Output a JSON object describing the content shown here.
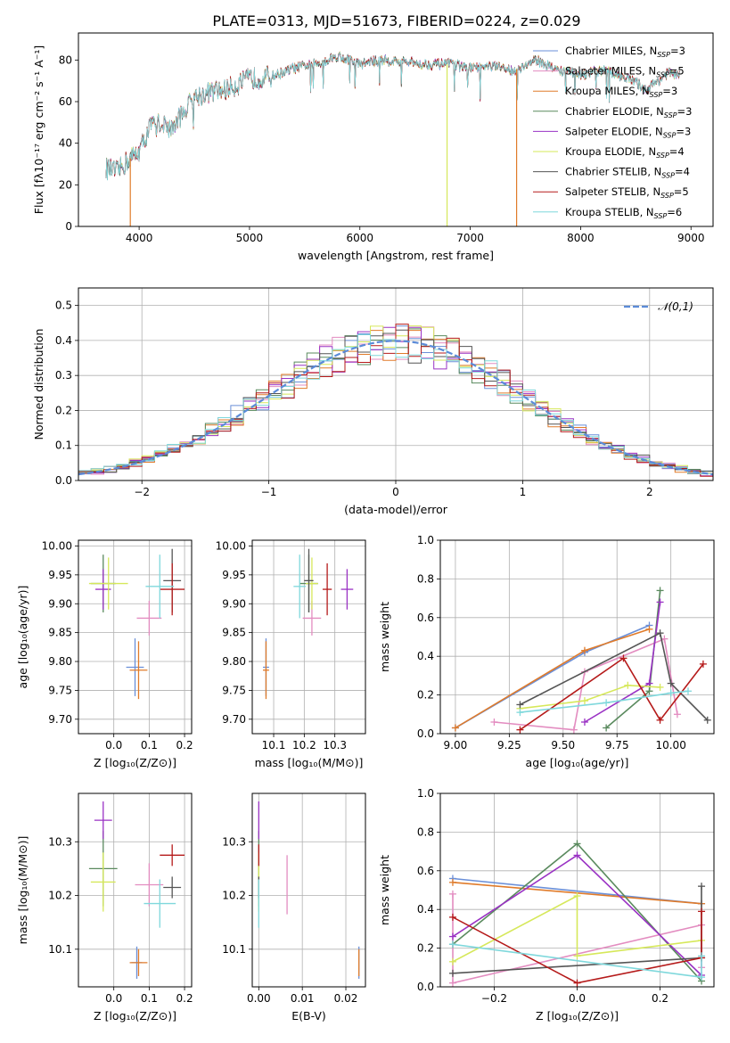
{
  "figure_title": "PLATE=0313, MJD=51673, FIBERID=0224, z=0.029",
  "colors": {
    "Chabrier MILES": "#6a8fd8",
    "Salpeter MILES": "#e38cc0",
    "Kroupa MILES": "#e07b2a",
    "Chabrier ELODIE": "#5a8a5e",
    "Salpeter ELODIE": "#9a32c4",
    "Kroupa ELODIE": "#d6e85a",
    "Chabrier STELIB": "#555555",
    "Salpeter STELIB": "#b51a1a",
    "Kroupa STELIB": "#7fd8dc",
    "normal_curve": "#5b8bd8",
    "grid": "#b0b0b0"
  },
  "chart_data": [
    {
      "id": "spectrum",
      "type": "line",
      "xlabel": "wavelength [Angstrom, rest frame]",
      "ylabel": "Flux [fλ10⁻¹⁷ erg cm⁻² s⁻¹ A⁻¹]",
      "xlim": [
        3450,
        9200
      ],
      "ylim": [
        0,
        93
      ],
      "xticks": [
        4000,
        5000,
        6000,
        7000,
        8000,
        9000
      ],
      "yticks": [
        0,
        20,
        40,
        60,
        80
      ],
      "grid": false,
      "legend_position": "top-right",
      "legend": [
        "Chabrier MILES, N_SSP=3",
        "Salpeter MILES, N_SSP=5",
        "Kroupa MILES, N_SSP=3",
        "Chabrier ELODIE, N_SSP=3",
        "Salpeter ELODIE, N_SSP=3",
        "Kroupa ELODIE, N_SSP=4",
        "Chabrier STELIB, N_SSP=4",
        "Salpeter STELIB, N_SSP=5",
        "Kroupa STELIB, N_SSP=6"
      ],
      "continuum": [
        [
          3700,
          28
        ],
        [
          3800,
          26
        ],
        [
          3900,
          32
        ],
        [
          4000,
          36
        ],
        [
          4100,
          48
        ],
        [
          4200,
          50
        ],
        [
          4300,
          47
        ],
        [
          4400,
          55
        ],
        [
          4500,
          62
        ],
        [
          4600,
          64
        ],
        [
          4800,
          66
        ],
        [
          5000,
          71
        ],
        [
          5200,
          72
        ],
        [
          5400,
          76
        ],
        [
          5600,
          78
        ],
        [
          5800,
          82
        ],
        [
          5900,
          80
        ],
        [
          6000,
          78
        ],
        [
          6200,
          80
        ],
        [
          6400,
          79
        ],
        [
          6600,
          78
        ],
        [
          6800,
          78
        ],
        [
          7000,
          76
        ],
        [
          7200,
          77
        ],
        [
          7400,
          75
        ],
        [
          7600,
          80
        ],
        [
          7800,
          75
        ],
        [
          8000,
          73
        ],
        [
          8200,
          75
        ],
        [
          8400,
          72
        ],
        [
          8600,
          66
        ],
        [
          8800,
          74
        ],
        [
          8900,
          72
        ]
      ],
      "drops": [
        {
          "x": 3920,
          "model": "Kroupa MILES"
        },
        {
          "x": 6790,
          "model": "Kroupa ELODIE"
        },
        {
          "x": 7420,
          "model": "Kroupa MILES"
        }
      ]
    },
    {
      "id": "residual-distribution",
      "type": "line",
      "xlabel": "(data-model)/error",
      "ylabel": "Normed distribution",
      "xlim": [
        -2.5,
        2.5
      ],
      "ylim": [
        0,
        0.55
      ],
      "xticks": [
        -2,
        -1,
        0,
        1,
        2
      ],
      "yticks": [
        0.0,
        0.1,
        0.2,
        0.3,
        0.4,
        0.5
      ],
      "grid": true,
      "legend_position": "top-right",
      "legend": [
        "𝒩(0,1)"
      ],
      "series": "nine step histograms of residuals, one per model, following the normal curve with peak near 0.40–0.52 at x=0"
    },
    {
      "id": "age-vs-Z",
      "type": "scatter",
      "xlabel": "Z [log₁₀(Z/Z⊙)]",
      "ylabel": "age  [log₁₀(age/yr)]",
      "xlim": [
        -0.1,
        0.22
      ],
      "ylim": [
        9.675,
        10.01
      ],
      "xticks": [
        0.0,
        0.1,
        0.2
      ],
      "yticks": [
        9.7,
        9.75,
        9.8,
        9.85,
        9.9,
        9.95,
        10.0
      ],
      "grid": true,
      "points": [
        {
          "model": "Chabrier MILES",
          "x": 0.06,
          "xerr": 0.025,
          "y": 9.79,
          "yerr": 0.05
        },
        {
          "model": "Salpeter MILES",
          "x": 0.1,
          "xerr": 0.035,
          "y": 9.875,
          "yerr": 0.03
        },
        {
          "model": "Kroupa MILES",
          "x": 0.07,
          "xerr": 0.025,
          "y": 9.785,
          "yerr": 0.05
        },
        {
          "model": "Chabrier ELODIE",
          "x": -0.03,
          "xerr": 0.035,
          "y": 9.935,
          "yerr": 0.05
        },
        {
          "model": "Salpeter ELODIE",
          "x": -0.03,
          "xerr": 0.022,
          "y": 9.925,
          "yerr": 0.035
        },
        {
          "model": "Kroupa ELODIE",
          "x": -0.015,
          "xerr": 0.055,
          "y": 9.935,
          "yerr": 0.045
        },
        {
          "model": "Chabrier STELIB",
          "x": 0.165,
          "xerr": 0.025,
          "y": 9.94,
          "yerr": 0.055
        },
        {
          "model": "Salpeter STELIB",
          "x": 0.165,
          "xerr": 0.035,
          "y": 9.925,
          "yerr": 0.045
        },
        {
          "model": "Kroupa STELIB",
          "x": 0.13,
          "xerr": 0.04,
          "y": 9.93,
          "yerr": 0.055
        }
      ]
    },
    {
      "id": "age-vs-mass",
      "type": "scatter",
      "xlabel": "mass [log₁₀(M/M⊙)]",
      "ylabel": "",
      "xlim": [
        10.03,
        10.4
      ],
      "ylim": [
        9.675,
        10.01
      ],
      "xticks": [
        10.1,
        10.2,
        10.3
      ],
      "yticks": [
        9.7,
        9.75,
        9.8,
        9.85,
        9.9,
        9.95,
        10.0
      ],
      "grid": true,
      "points": [
        {
          "model": "Chabrier MILES",
          "x": 10.075,
          "xerr": 0.01,
          "y": 9.79,
          "yerr": 0.05
        },
        {
          "model": "Salpeter MILES",
          "x": 10.225,
          "xerr": 0.03,
          "y": 9.875,
          "yerr": 0.03
        },
        {
          "model": "Kroupa MILES",
          "x": 10.075,
          "xerr": 0.01,
          "y": 9.785,
          "yerr": 0.05
        },
        {
          "model": "Chabrier ELODIE",
          "x": 10.215,
          "xerr": 0.03,
          "y": 9.935,
          "yerr": 0.05
        },
        {
          "model": "Salpeter ELODIE",
          "x": 10.34,
          "xerr": 0.02,
          "y": 9.925,
          "yerr": 0.035
        },
        {
          "model": "Kroupa ELODIE",
          "x": 10.225,
          "xerr": 0.02,
          "y": 9.935,
          "yerr": 0.045
        },
        {
          "model": "Chabrier STELIB",
          "x": 10.215,
          "xerr": 0.015,
          "y": 9.94,
          "yerr": 0.055
        },
        {
          "model": "Salpeter STELIB",
          "x": 10.275,
          "xerr": 0.015,
          "y": 9.925,
          "yerr": 0.045
        },
        {
          "model": "Kroupa STELIB",
          "x": 10.185,
          "xerr": 0.02,
          "y": 9.93,
          "yerr": 0.055
        }
      ]
    },
    {
      "id": "mass-weight-vs-age",
      "type": "line",
      "xlabel": "age  [log₁₀(age/yr)]",
      "ylabel": "mass weight",
      "xlim": [
        8.93,
        10.2
      ],
      "ylim": [
        0,
        1
      ],
      "xticks": [
        9.0,
        9.25,
        9.5,
        9.75,
        10.0
      ],
      "yticks": [
        0.0,
        0.2,
        0.4,
        0.6,
        0.8,
        1.0
      ],
      "grid": true,
      "series": [
        {
          "model": "Chabrier MILES",
          "x": [
            9.0,
            9.6,
            9.9
          ],
          "y": [
            0.03,
            0.42,
            0.56
          ]
        },
        {
          "model": "Salpeter MILES",
          "x": [
            9.18,
            9.55,
            9.6,
            9.97,
            10.03
          ],
          "y": [
            0.06,
            0.02,
            0.32,
            0.49,
            0.1
          ]
        },
        {
          "model": "Kroupa MILES",
          "x": [
            9.0,
            9.6,
            9.9
          ],
          "y": [
            0.03,
            0.43,
            0.54
          ]
        },
        {
          "model": "Chabrier ELODIE",
          "x": [
            9.7,
            9.9,
            9.95
          ],
          "y": [
            0.03,
            0.22,
            0.74
          ]
        },
        {
          "model": "Salpeter ELODIE",
          "x": [
            9.6,
            9.9,
            9.95
          ],
          "y": [
            0.06,
            0.26,
            0.68
          ]
        },
        {
          "model": "Kroupa ELODIE",
          "x": [
            9.3,
            9.6,
            9.8,
            9.95
          ],
          "y": [
            0.13,
            0.17,
            0.25,
            0.24
          ]
        },
        {
          "model": "Chabrier STELIB",
          "x": [
            9.3,
            9.95,
            10.0,
            10.17
          ],
          "y": [
            0.15,
            0.52,
            0.26,
            0.07
          ]
        },
        {
          "model": "Salpeter STELIB",
          "x": [
            9.3,
            9.78,
            9.95,
            10.15
          ],
          "y": [
            0.02,
            0.39,
            0.07,
            0.36
          ]
        },
        {
          "model": "Kroupa STELIB",
          "x": [
            9.3,
            9.7,
            10.0,
            10.08
          ],
          "y": [
            0.11,
            0.16,
            0.21,
            0.22
          ]
        }
      ]
    },
    {
      "id": "mass-vs-Z",
      "type": "scatter",
      "xlabel": "Z [log₁₀(Z/Z⊙)]",
      "ylabel": "mass [log₁₀(M/M⊙)]",
      "xlim": [
        -0.1,
        0.22
      ],
      "ylim": [
        10.03,
        10.39
      ],
      "xticks": [
        0.0,
        0.1,
        0.2
      ],
      "yticks": [
        10.1,
        10.2,
        10.3
      ],
      "grid": true,
      "points": [
        {
          "model": "Chabrier MILES",
          "x": 0.065,
          "xerr": 0.015,
          "y": 10.075,
          "yerr": 0.03
        },
        {
          "model": "Salpeter MILES",
          "x": 0.1,
          "xerr": 0.04,
          "y": 10.22,
          "yerr": 0.04
        },
        {
          "model": "Kroupa MILES",
          "x": 0.07,
          "xerr": 0.025,
          "y": 10.075,
          "yerr": 0.025
        },
        {
          "model": "Chabrier ELODIE",
          "x": -0.03,
          "xerr": 0.04,
          "y": 10.25,
          "yerr": 0.07
        },
        {
          "model": "Salpeter ELODIE",
          "x": -0.03,
          "xerr": 0.025,
          "y": 10.34,
          "yerr": 0.035
        },
        {
          "model": "Kroupa ELODIE",
          "x": -0.03,
          "xerr": 0.035,
          "y": 10.225,
          "yerr": 0.055
        },
        {
          "model": "Chabrier STELIB",
          "x": 0.165,
          "xerr": 0.025,
          "y": 10.215,
          "yerr": 0.02
        },
        {
          "model": "Salpeter STELIB",
          "x": 0.165,
          "xerr": 0.035,
          "y": 10.275,
          "yerr": 0.02
        },
        {
          "model": "Kroupa STELIB",
          "x": 0.13,
          "xerr": 0.045,
          "y": 10.185,
          "yerr": 0.045
        }
      ]
    },
    {
      "id": "ebv-vs-mass",
      "type": "scatter",
      "xlabel": "E(B-V)",
      "ylabel": "",
      "xlim": [
        -0.0015,
        0.0245
      ],
      "ylim": [
        10.03,
        10.39
      ],
      "xticks": [
        0.0,
        0.01,
        0.02
      ],
      "yticks": [
        10.1,
        10.2,
        10.3
      ],
      "grid": true,
      "points": [
        {
          "model": "Chabrier MILES",
          "x": 0.023,
          "xerr": 0,
          "y": 10.075,
          "yerr": 0.03
        },
        {
          "model": "Salpeter MILES",
          "x": 0.0065,
          "xerr": 0,
          "y": 10.22,
          "yerr": 0.055
        },
        {
          "model": "Kroupa MILES",
          "x": 0.023,
          "xerr": 0,
          "y": 10.075,
          "yerr": 0.025
        },
        {
          "model": "Chabrier ELODIE",
          "x": 0.0,
          "xerr": 0,
          "y": 10.25,
          "yerr": 0.07
        },
        {
          "model": "Salpeter ELODIE",
          "x": 0.0,
          "xerr": 0,
          "y": 10.34,
          "yerr": 0.035
        },
        {
          "model": "Kroupa ELODIE",
          "x": 0.0,
          "xerr": 0,
          "y": 10.225,
          "yerr": 0.055
        },
        {
          "model": "Chabrier STELIB",
          "x": 0.0,
          "xerr": 0,
          "y": 10.215,
          "yerr": 0.02
        },
        {
          "model": "Salpeter STELIB",
          "x": 0.0,
          "xerr": 0,
          "y": 10.275,
          "yerr": 0.02
        },
        {
          "model": "Kroupa STELIB",
          "x": 0.0,
          "xerr": 0,
          "y": 10.185,
          "yerr": 0.045
        }
      ]
    },
    {
      "id": "mass-weight-vs-Z",
      "type": "line",
      "xlabel": "Z [log₁₀(Z/Z⊙)]",
      "ylabel": "mass weight",
      "xlim": [
        -0.33,
        0.33
      ],
      "ylim": [
        0,
        1
      ],
      "xticks": [
        -0.2,
        0.0,
        0.2
      ],
      "yticks": [
        0.0,
        0.2,
        0.4,
        0.6,
        0.8,
        1.0
      ],
      "grid": true,
      "series": [
        {
          "model": "Chabrier MILES",
          "x": [
            -0.3,
            0.3
          ],
          "y": [
            0.56,
            0.43
          ]
        },
        {
          "model": "Salpeter MILES",
          "x": [
            -0.3,
            -0.3,
            0.3,
            0.3
          ],
          "y": [
            0.48,
            0.02,
            0.32,
            0.1
          ]
        },
        {
          "model": "Kroupa MILES",
          "x": [
            -0.3,
            0.3
          ],
          "y": [
            0.54,
            0.43
          ]
        },
        {
          "model": "Chabrier ELODIE",
          "x": [
            -0.3,
            0.0,
            0.3
          ],
          "y": [
            0.22,
            0.74,
            0.03
          ]
        },
        {
          "model": "Salpeter ELODIE",
          "x": [
            -0.3,
            0.0,
            0.3
          ],
          "y": [
            0.26,
            0.68,
            0.06
          ]
        },
        {
          "model": "Kroupa ELODIE",
          "x": [
            -0.3,
            0.0,
            0.0,
            0.3
          ],
          "y": [
            0.13,
            0.47,
            0.16,
            0.24
          ]
        },
        {
          "model": "Chabrier STELIB",
          "x": [
            -0.3,
            0.3,
            0.3
          ],
          "y": [
            0.07,
            0.15,
            0.52
          ]
        },
        {
          "model": "Salpeter STELIB",
          "x": [
            -0.3,
            0.0,
            0.3,
            0.3
          ],
          "y": [
            0.36,
            0.02,
            0.15,
            0.39
          ]
        },
        {
          "model": "Kroupa STELIB",
          "x": [
            -0.3,
            0.3,
            0.3
          ],
          "y": [
            0.22,
            0.05,
            0.16
          ]
        }
      ]
    }
  ]
}
